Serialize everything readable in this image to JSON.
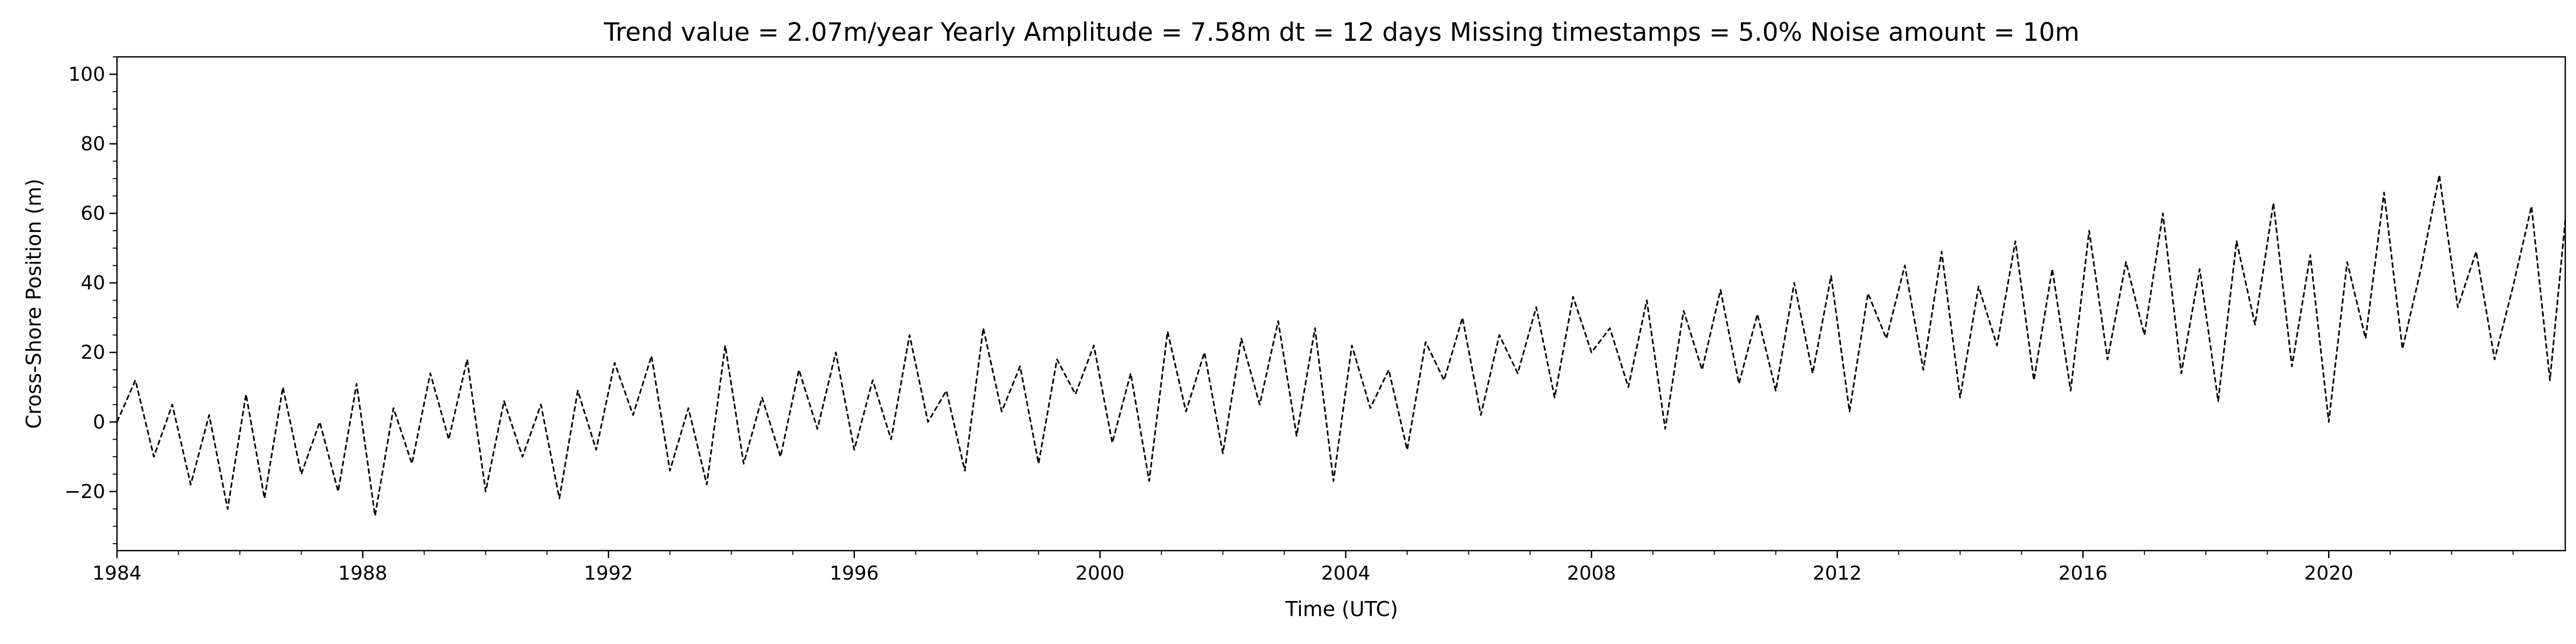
{
  "chart_data": {
    "type": "line",
    "title": "Trend value = 2.07m/year    Yearly Amplitude = 7.58m    dt = 12 days    Missing timestamps = 5.0%    Noise amount = 10m",
    "xlabel": "Time (UTC)",
    "ylabel": "Cross-Shore Position (m)",
    "xlim": [
      1984.0,
      2023.85
    ],
    "ylim": [
      -37,
      105
    ],
    "x_ticks": [
      1984,
      1988,
      1992,
      1996,
      2000,
      2004,
      2008,
      2012,
      2016,
      2020
    ],
    "y_ticks": [
      -20,
      0,
      20,
      40,
      60,
      80,
      100
    ],
    "grid": false,
    "legend": "none",
    "series": [
      {
        "line_style": "dashed",
        "color": "#000000",
        "x": [
          1984.0,
          1984.3,
          1984.6,
          1984.9,
          1985.2,
          1985.5,
          1985.8,
          1986.1,
          1986.4,
          1986.7,
          1987.0,
          1987.3,
          1987.6,
          1987.9,
          1988.2,
          1988.5,
          1988.8,
          1989.1,
          1989.4,
          1989.7,
          1990.0,
          1990.3,
          1990.6,
          1990.9,
          1991.2,
          1991.5,
          1991.8,
          1992.1,
          1992.4,
          1992.7,
          1993.0,
          1993.3,
          1993.6,
          1993.9,
          1994.2,
          1994.5,
          1994.8,
          1995.1,
          1995.4,
          1995.7,
          1996.0,
          1996.3,
          1996.6,
          1996.9,
          1997.2,
          1997.5,
          1997.8,
          1998.1,
          1998.4,
          1998.7,
          1999.0,
          1999.3,
          1999.6,
          1999.9,
          2000.2,
          2000.5,
          2000.8,
          2001.1,
          2001.4,
          2001.7,
          2002.0,
          2002.3,
          2002.6,
          2002.9,
          2003.2,
          2003.5,
          2003.8,
          2004.1,
          2004.4,
          2004.7,
          2005.0,
          2005.3,
          2005.6,
          2005.9,
          2006.2,
          2006.5,
          2006.8,
          2007.1,
          2007.4,
          2007.7,
          2008.0,
          2008.3,
          2008.6,
          2008.9,
          2009.2,
          2009.5,
          2009.8,
          2010.1,
          2010.4,
          2010.7,
          2011.0,
          2011.3,
          2011.6,
          2011.9,
          2012.2,
          2012.5,
          2012.8,
          2013.1,
          2013.4,
          2013.7,
          2014.0,
          2014.3,
          2014.6,
          2014.9,
          2015.2,
          2015.5,
          2015.8,
          2016.1,
          2016.4,
          2016.7,
          2017.0,
          2017.3,
          2017.6,
          2017.9,
          2018.2,
          2018.5,
          2018.8,
          2019.1,
          2019.4,
          2019.7,
          2020.0,
          2020.3,
          2020.6,
          2020.9,
          2021.2,
          2021.5,
          2021.8,
          2022.1,
          2022.4,
          2022.7,
          2023.0,
          2023.3,
          2023.6,
          2023.85
        ],
        "y": [
          0,
          12,
          -10,
          5,
          -18,
          2,
          -25,
          8,
          -22,
          10,
          -15,
          0,
          -20,
          11,
          -27,
          4,
          -12,
          14,
          -5,
          18,
          -20,
          6,
          -10,
          5,
          -22,
          9,
          -8,
          17,
          2,
          19,
          -14,
          4,
          -18,
          22,
          -12,
          7,
          -10,
          15,
          -2,
          20,
          -8,
          12,
          -5,
          25,
          0,
          9,
          -14,
          27,
          3,
          16,
          -12,
          18,
          8,
          22,
          -6,
          14,
          -17,
          26,
          3,
          20,
          -9,
          24,
          5,
          29,
          -4,
          27,
          -17,
          22,
          4,
          15,
          -8,
          23,
          12,
          30,
          2,
          25,
          14,
          33,
          7,
          36,
          20,
          27,
          10,
          35,
          -2,
          32,
          15,
          38,
          11,
          31,
          9,
          40,
          14,
          42,
          3,
          37,
          24,
          45,
          15,
          49,
          7,
          39,
          22,
          52,
          12,
          44,
          9,
          55,
          18,
          46,
          25,
          60,
          14,
          44,
          6,
          52,
          28,
          63,
          16,
          48,
          0,
          46,
          24,
          66,
          21,
          44,
          71,
          33,
          49,
          18,
          39,
          62,
          12,
          58
        ],
        "y_note": "placeholder"
      }
    ]
  }
}
